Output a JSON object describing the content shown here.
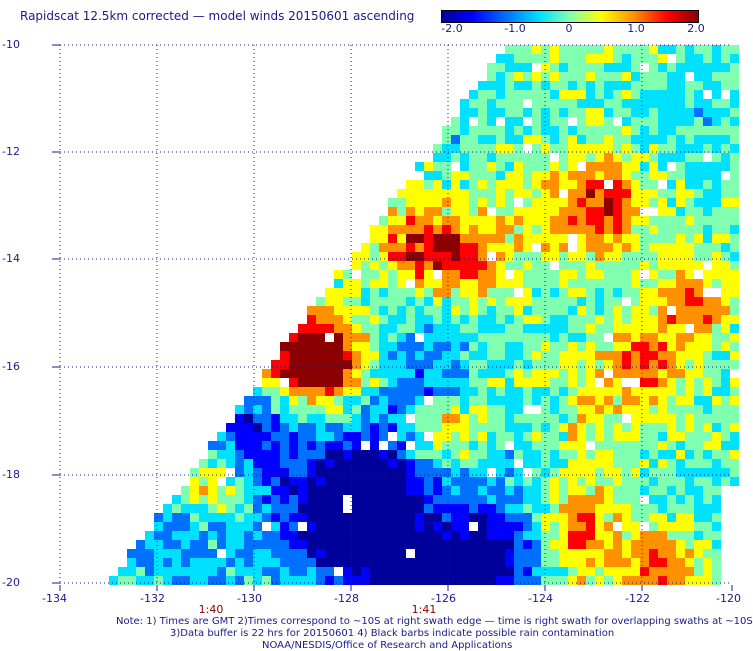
{
  "title": "Rapidscat 12.5km corrected — model winds 20150601 ascending",
  "colorbar": {
    "ticks": [
      "-2.0",
      "-1.0",
      "0",
      "1.0",
      "2.0"
    ],
    "colors": [
      "#00009a",
      "#0000ff",
      "#0070ff",
      "#00e0ff",
      "#80ffb0",
      "#ffff00",
      "#ff9000",
      "#ff0000",
      "#8b0000"
    ]
  },
  "axes": {
    "x_ticks": [
      "-134",
      "-132",
      "-130",
      "-128",
      "-126",
      "-124",
      "-122",
      "-120"
    ],
    "y_ticks": [
      "-10",
      "-12",
      "-14",
      "-16",
      "-18",
      "-20"
    ]
  },
  "time_marks": [
    "1:40",
    "1:41"
  ],
  "notes": [
    "Note: 1) Times are GMT 2)Times correspond to ~10S at right swath edge — time is right swath for overlapping swaths at ~10S",
    "3)Data buffer is 22 hrs for 20150601 4) Black barbs indicate possible rain contamination",
    "NOAA/NESDIS/Office of Research and Applications"
  ],
  "chart_data": {
    "type": "heatmap",
    "title": "Rapidscat 12.5km corrected — model winds 20150601 ascending",
    "xlabel": "",
    "ylabel": "",
    "xlim": [
      -134,
      -120
    ],
    "ylim": [
      -20,
      -10
    ],
    "value_range": [
      -2.0,
      2.0
    ],
    "grid": true
  }
}
